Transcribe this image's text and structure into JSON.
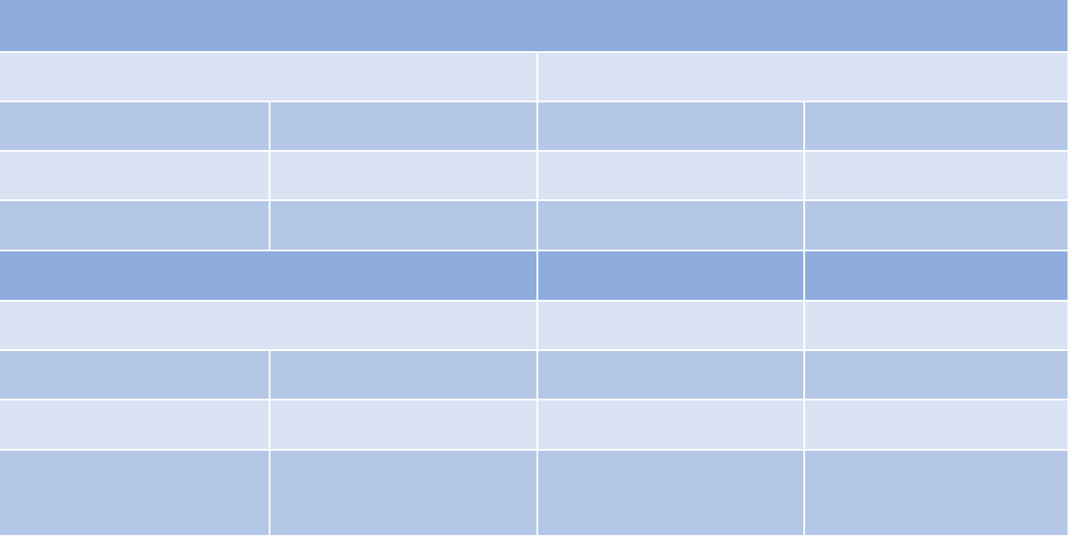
{
  "palette": {
    "header_dark": "#8facde",
    "row_mid": "#b4c7e7",
    "row_light": "#dae3f3",
    "border": "#ffffff"
  },
  "table": {
    "title_row": [
      ""
    ],
    "row_1": [
      "",
      ""
    ],
    "row_2": [
      "",
      "",
      "",
      ""
    ],
    "row_3": [
      "",
      "",
      "",
      ""
    ],
    "row_4": [
      "",
      "",
      "",
      ""
    ],
    "row_5": [
      "",
      "",
      "",
      ""
    ],
    "row_6": [
      "",
      "",
      "",
      ""
    ],
    "row_7": [
      "",
      "",
      "",
      ""
    ],
    "row_8": [
      "",
      "",
      "",
      ""
    ],
    "row_9": [
      "",
      "",
      "",
      ""
    ]
  }
}
